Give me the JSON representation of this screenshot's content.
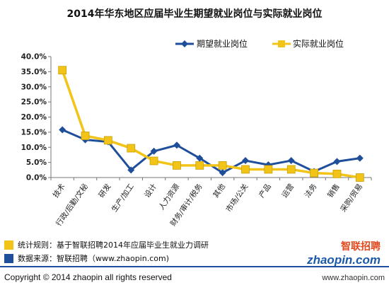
{
  "chart_data": {
    "type": "line",
    "title": "2014年华东地区应届毕业生期望就业岗位与实际就业岗位",
    "categories": [
      "技术",
      "行政/后勤/文秘",
      "研发",
      "生产/加工",
      "设计",
      "人力资源",
      "财务/审计/税务",
      "其他",
      "市场/公关",
      "产品",
      "运营",
      "法务",
      "销售",
      "采购/贸易"
    ],
    "y_ticks": [
      "0.0%",
      "5.0%",
      "10.0%",
      "15.0%",
      "20.0%",
      "25.0%",
      "30.0%",
      "35.0%",
      "40.0%"
    ],
    "ylim": [
      0,
      40
    ],
    "grid": false,
    "legend": "top-right",
    "series": [
      {
        "name": "期望就业岗位",
        "color": "#1f4e9a",
        "marker": "diamond",
        "values": [
          15.8,
          12.5,
          11.8,
          2.5,
          8.7,
          10.7,
          6.4,
          1.6,
          5.6,
          4.2,
          5.6,
          2.0,
          5.3,
          6.4
        ]
      },
      {
        "name": "实际就业岗位",
        "color": "#f2c418",
        "marker": "square",
        "values": [
          35.5,
          13.8,
          12.3,
          9.7,
          5.5,
          4.0,
          4.0,
          4.0,
          2.7,
          2.7,
          2.7,
          1.5,
          1.2,
          0.0
        ]
      }
    ]
  },
  "notes": {
    "stat_rule": "统计规则：基于智联招聘2014年应届毕业生就业力调研",
    "data_source": "数据来源：智联招聘（www.zhaopin.com)"
  },
  "logo": {
    "cn": "智联招聘",
    "en": "zhaopin.com"
  },
  "footer": {
    "copyright": "Copyright  ©  2014 zhaopin all rights reserved",
    "url": "www.zhaopin.com"
  }
}
